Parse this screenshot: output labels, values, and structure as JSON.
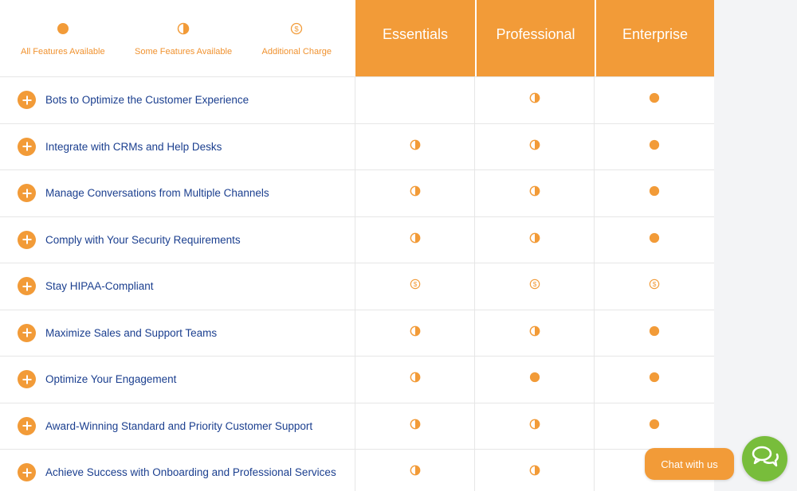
{
  "legend": {
    "full": "All Features Available",
    "partial": "Some Features Available",
    "charge": "Additional Charge"
  },
  "plans": [
    "Essentials",
    "Professional",
    "Enterprise"
  ],
  "features": [
    {
      "label": "Bots to Optimize the Customer Experience",
      "values": [
        "none",
        "partial",
        "full"
      ]
    },
    {
      "label": "Integrate with CRMs and Help Desks",
      "values": [
        "partial",
        "partial",
        "full"
      ]
    },
    {
      "label": "Manage Conversations from Multiple Channels",
      "values": [
        "partial",
        "partial",
        "full"
      ]
    },
    {
      "label": "Comply with Your Security Requirements",
      "values": [
        "partial",
        "partial",
        "full"
      ]
    },
    {
      "label": "Stay HIPAA-Compliant",
      "values": [
        "charge",
        "charge",
        "charge"
      ]
    },
    {
      "label": "Maximize Sales and Support Teams",
      "values": [
        "partial",
        "partial",
        "full"
      ]
    },
    {
      "label": "Optimize Your Engagement",
      "values": [
        "partial",
        "full",
        "full"
      ]
    },
    {
      "label": "Award-Winning Standard and Priority Customer Support",
      "values": [
        "partial",
        "partial",
        "full"
      ]
    },
    {
      "label": "Achieve Success with Onboarding and Professional Services",
      "values": [
        "partial",
        "partial",
        "full"
      ]
    }
  ],
  "chat": {
    "label": "Chat with us",
    "icon": "chat-bubbles-icon"
  },
  "colors": {
    "accent": "#f29b38",
    "text": "#1b3f8f",
    "chat_green": "#78bd3b"
  }
}
